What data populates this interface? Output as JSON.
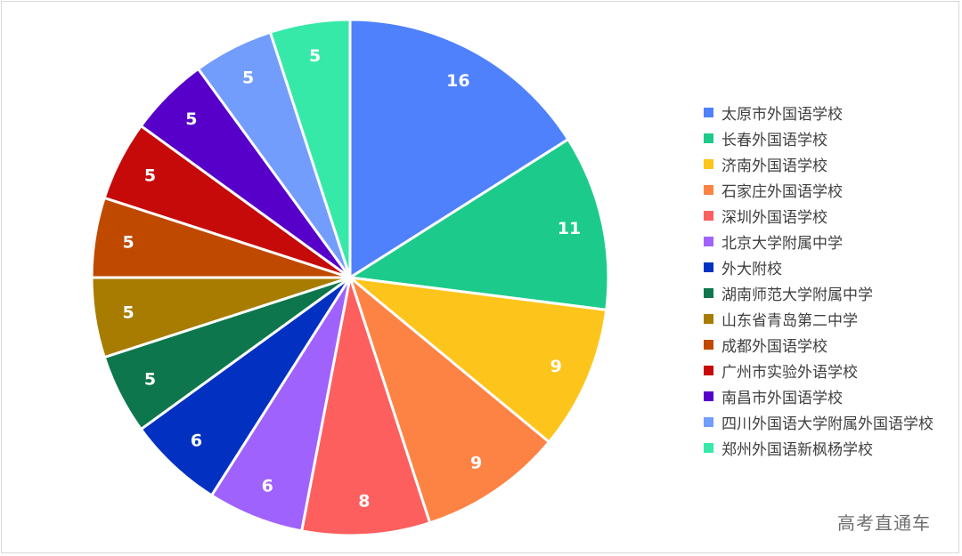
{
  "chart_data": {
    "type": "pie",
    "categories": [
      "太原市外国语学校",
      "长春外国语学校",
      "济南外国语学校",
      "石家庄外国语学校",
      "深圳外国语学校",
      "北京大学附属中学",
      "外大附校",
      "湖南师范大学附属中学",
      "山东省青岛第二中学",
      "成都外国语学校",
      "广州市实验外语学校",
      "南昌市外国语学校",
      "四川外国语大学附属外国语学校",
      "郑州外国语新枫杨学校"
    ],
    "values": [
      16,
      11,
      9,
      9,
      8,
      6,
      6,
      5,
      5,
      5,
      5,
      5,
      5,
      5
    ],
    "colors": [
      "#4f81fd",
      "#1ccb8b",
      "#fdc51c",
      "#fd8344",
      "#fd5f5f",
      "#a062fd",
      "#0231c2",
      "#0e764c",
      "#a77c00",
      "#c04900",
      "#c60a0a",
      "#5600c9",
      "#739dfd",
      "#36e9a8"
    ],
    "legend_position": "right"
  },
  "watermark": "高考直通车"
}
